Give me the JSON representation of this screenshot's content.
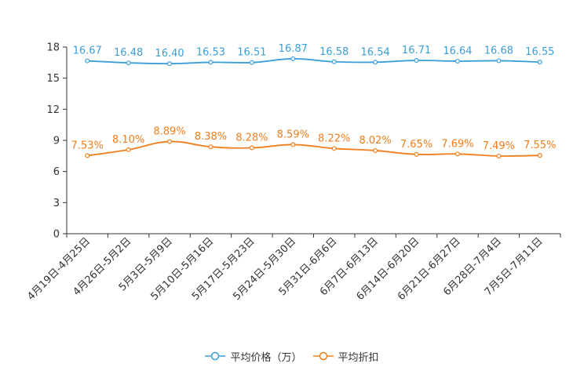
{
  "chart_data": {
    "type": "line",
    "title": "",
    "xlabel": "",
    "ylabel": "",
    "ylim": [
      0,
      18
    ],
    "yticks": [
      0,
      3,
      6,
      9,
      12,
      15,
      18
    ],
    "grid": false,
    "legend_position": "bottom-center",
    "categories": [
      "4月19日-4月25日",
      "4月26日-5月2日",
      "5月3日-5月9日",
      "5月10日-5月16日",
      "5月17日-5月23日",
      "5月24日-5月30日",
      "5月31日-6月6日",
      "6月7日-6月13日",
      "6月14日-6月20日",
      "6月21日-6月27日",
      "6月28日-7月4日",
      "7月5日-7月11日"
    ],
    "series": [
      {
        "name": "平均价格（万）",
        "color": "#3a9fd8",
        "values": [
          16.67,
          16.48,
          16.4,
          16.53,
          16.51,
          16.87,
          16.58,
          16.54,
          16.71,
          16.64,
          16.68,
          16.55
        ],
        "labels": [
          "16.67",
          "16.48",
          "16.40",
          "16.53",
          "16.51",
          "16.87",
          "16.58",
          "16.54",
          "16.71",
          "16.64",
          "16.68",
          "16.55"
        ]
      },
      {
        "name": "平均折扣",
        "color": "#f07d1a",
        "values": [
          7.53,
          8.1,
          8.89,
          8.38,
          8.28,
          8.59,
          8.22,
          8.02,
          7.65,
          7.69,
          7.49,
          7.55
        ],
        "labels": [
          "7.53%",
          "8.10%",
          "8.89%",
          "8.38%",
          "8.28%",
          "8.59%",
          "8.22%",
          "8.02%",
          "7.65%",
          "7.69%",
          "7.49%",
          "7.55%"
        ]
      }
    ]
  }
}
